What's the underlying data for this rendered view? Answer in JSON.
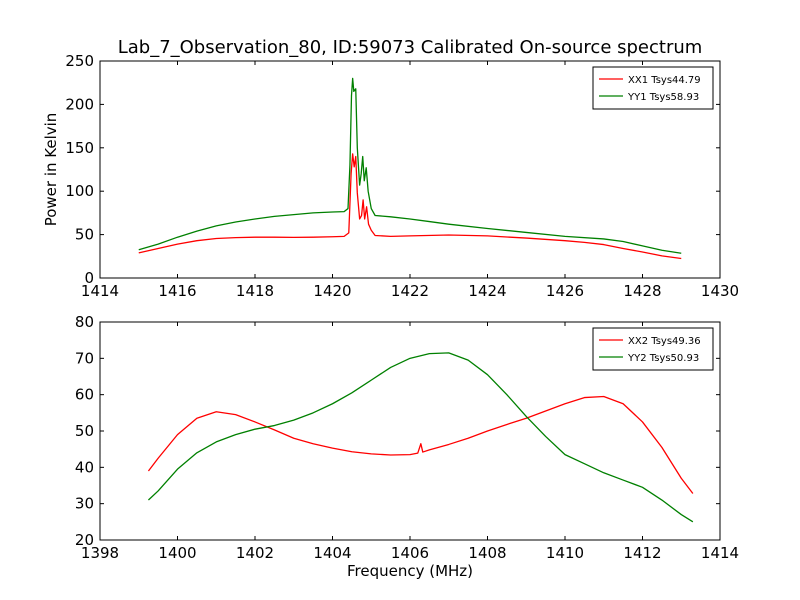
{
  "figure_title": "Lab_7_Observation_80, ID:59073 Calibrated On-source spectrum",
  "chart_data": [
    {
      "type": "line",
      "ylabel": "Power in Kelvin",
      "xlabel": "",
      "xlim": [
        1414,
        1430
      ],
      "ylim": [
        0,
        250
      ],
      "xticks": [
        1414,
        1416,
        1418,
        1420,
        1422,
        1424,
        1426,
        1428,
        1430
      ],
      "yticks": [
        0,
        50,
        100,
        150,
        200,
        250
      ],
      "legend_position": "top-right",
      "series": [
        {
          "name": "XX1 Tsys44.79",
          "color": "#ff0000",
          "points": [
            [
              1415.0,
              29
            ],
            [
              1415.5,
              34
            ],
            [
              1416.0,
              39
            ],
            [
              1416.5,
              43
            ],
            [
              1417.0,
              45.5
            ],
            [
              1417.5,
              46.5
            ],
            [
              1418.0,
              47
            ],
            [
              1418.5,
              47
            ],
            [
              1419.0,
              46.8
            ],
            [
              1419.5,
              47
            ],
            [
              1420.0,
              47.5
            ],
            [
              1420.3,
              48
            ],
            [
              1420.42,
              52
            ],
            [
              1420.48,
              120
            ],
            [
              1420.52,
              143
            ],
            [
              1420.56,
              128
            ],
            [
              1420.6,
              140
            ],
            [
              1420.64,
              98
            ],
            [
              1420.7,
              68
            ],
            [
              1420.75,
              72
            ],
            [
              1420.79,
              90
            ],
            [
              1420.83,
              68
            ],
            [
              1420.88,
              82
            ],
            [
              1420.93,
              62
            ],
            [
              1421.0,
              55
            ],
            [
              1421.1,
              49
            ],
            [
              1421.5,
              48
            ],
            [
              1422.0,
              48.5
            ],
            [
              1423.0,
              49.5
            ],
            [
              1424.0,
              48.5
            ],
            [
              1425.0,
              46
            ],
            [
              1426.0,
              43
            ],
            [
              1426.5,
              41
            ],
            [
              1427.0,
              38.5
            ],
            [
              1427.5,
              34
            ],
            [
              1428.0,
              30
            ],
            [
              1428.5,
              25.5
            ],
            [
              1429.0,
              22.5
            ]
          ]
        },
        {
          "name": "YY1 Tsys58.93",
          "color": "#008000",
          "points": [
            [
              1415.0,
              32.5
            ],
            [
              1415.5,
              39
            ],
            [
              1416.0,
              47
            ],
            [
              1416.5,
              54
            ],
            [
              1417.0,
              60
            ],
            [
              1417.5,
              64.5
            ],
            [
              1418.0,
              68
            ],
            [
              1418.5,
              71
            ],
            [
              1419.0,
              73
            ],
            [
              1419.5,
              75
            ],
            [
              1420.0,
              76
            ],
            [
              1420.3,
              76.5
            ],
            [
              1420.4,
              80
            ],
            [
              1420.45,
              130
            ],
            [
              1420.49,
              210
            ],
            [
              1420.52,
              230
            ],
            [
              1420.55,
              215
            ],
            [
              1420.6,
              218
            ],
            [
              1420.64,
              150
            ],
            [
              1420.7,
              107
            ],
            [
              1420.74,
              120
            ],
            [
              1420.78,
              140
            ],
            [
              1420.82,
              112
            ],
            [
              1420.87,
              127
            ],
            [
              1420.92,
              100
            ],
            [
              1421.0,
              80
            ],
            [
              1421.1,
              72
            ],
            [
              1421.5,
              70.5
            ],
            [
              1422.0,
              68
            ],
            [
              1422.5,
              65
            ],
            [
              1423.0,
              62
            ],
            [
              1424.0,
              57
            ],
            [
              1425.0,
              52.5
            ],
            [
              1426.0,
              48
            ],
            [
              1427.0,
              45
            ],
            [
              1427.5,
              42
            ],
            [
              1428.0,
              37
            ],
            [
              1428.5,
              32
            ],
            [
              1429.0,
              28.5
            ]
          ]
        }
      ]
    },
    {
      "type": "line",
      "ylabel": "",
      "xlabel": "Frequency (MHz)",
      "xlim": [
        1398,
        1414
      ],
      "ylim": [
        20,
        80
      ],
      "xticks": [
        1398,
        1400,
        1402,
        1404,
        1406,
        1408,
        1410,
        1412,
        1414
      ],
      "yticks": [
        20,
        30,
        40,
        50,
        60,
        70,
        80
      ],
      "legend_position": "top-right",
      "series": [
        {
          "name": "XX2 Tsys49.36",
          "color": "#ff0000",
          "points": [
            [
              1399.25,
              39
            ],
            [
              1399.5,
              42.5
            ],
            [
              1400.0,
              49
            ],
            [
              1400.5,
              53.5
            ],
            [
              1401.0,
              55.3
            ],
            [
              1401.5,
              54.5
            ],
            [
              1402.0,
              52.5
            ],
            [
              1402.5,
              50.3
            ],
            [
              1403.0,
              48
            ],
            [
              1403.5,
              46.5
            ],
            [
              1404.0,
              45.3
            ],
            [
              1404.5,
              44.3
            ],
            [
              1405.0,
              43.7
            ],
            [
              1405.5,
              43.4
            ],
            [
              1406.0,
              43.5
            ],
            [
              1406.2,
              43.9
            ],
            [
              1406.28,
              46.5
            ],
            [
              1406.33,
              44.2
            ],
            [
              1406.5,
              44.8
            ],
            [
              1407.0,
              46.3
            ],
            [
              1407.5,
              48
            ],
            [
              1408.0,
              50
            ],
            [
              1408.5,
              51.8
            ],
            [
              1409.0,
              53.5
            ],
            [
              1409.5,
              55.5
            ],
            [
              1410.0,
              57.5
            ],
            [
              1410.5,
              59.2
            ],
            [
              1411.0,
              59.5
            ],
            [
              1411.5,
              57.5
            ],
            [
              1412.0,
              52.5
            ],
            [
              1412.5,
              45.5
            ],
            [
              1413.0,
              37
            ],
            [
              1413.3,
              32.8
            ]
          ]
        },
        {
          "name": "YY2 Tsys50.93",
          "color": "#008000",
          "points": [
            [
              1399.25,
              31
            ],
            [
              1399.5,
              33.5
            ],
            [
              1400.0,
              39.5
            ],
            [
              1400.5,
              44
            ],
            [
              1401.0,
              47
            ],
            [
              1401.5,
              49
            ],
            [
              1402.0,
              50.5
            ],
            [
              1402.5,
              51.5
            ],
            [
              1403.0,
              53
            ],
            [
              1403.5,
              55
            ],
            [
              1404.0,
              57.5
            ],
            [
              1404.5,
              60.5
            ],
            [
              1405.0,
              64
            ],
            [
              1405.5,
              67.5
            ],
            [
              1406.0,
              70
            ],
            [
              1406.5,
              71.3
            ],
            [
              1407.0,
              71.5
            ],
            [
              1407.5,
              69.5
            ],
            [
              1408.0,
              65.5
            ],
            [
              1408.5,
              60
            ],
            [
              1409.0,
              54
            ],
            [
              1409.5,
              48.5
            ],
            [
              1410.0,
              43.5
            ],
            [
              1410.5,
              41
            ],
            [
              1411.0,
              38.5
            ],
            [
              1411.5,
              36.5
            ],
            [
              1412.0,
              34.5
            ],
            [
              1412.5,
              31
            ],
            [
              1413.0,
              27
            ],
            [
              1413.3,
              25
            ]
          ]
        }
      ]
    }
  ]
}
